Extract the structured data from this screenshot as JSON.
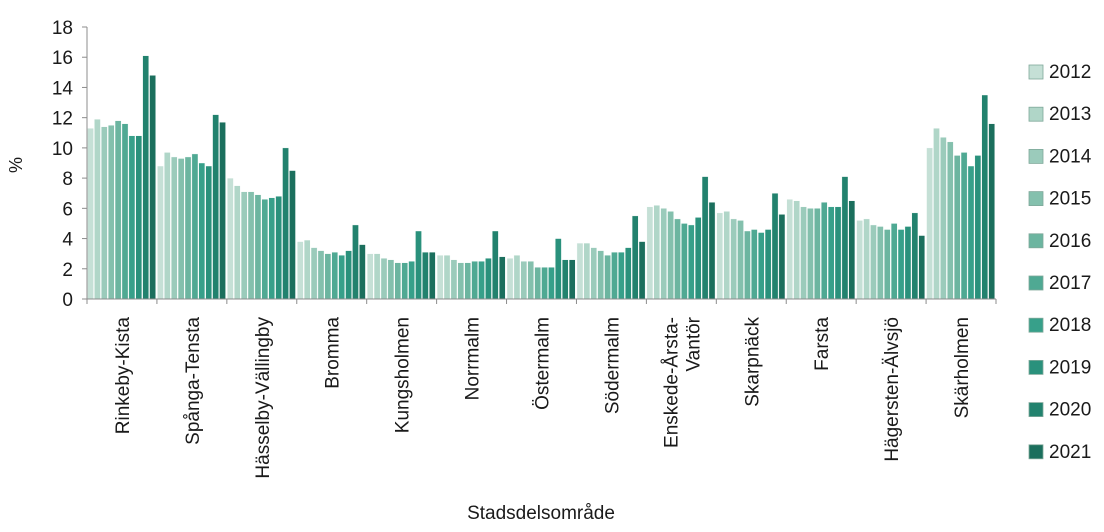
{
  "chart_data": {
    "type": "bar",
    "title": "",
    "xlabel": "Stadsdelsområde",
    "ylabel": "%",
    "ylim": [
      0,
      18
    ],
    "yticks": [
      0,
      2,
      4,
      6,
      8,
      10,
      12,
      14,
      16,
      18
    ],
    "grid": false,
    "legend_position": "right",
    "categories": [
      "Rinkeby-Kista",
      "Spånga-Tensta",
      "Hässelby-Vällingby",
      "Bromma",
      "Kungsholmen",
      "Norrmalm",
      "Östermalm",
      "Södermalm",
      "Enskede-Årsta-Vantör",
      "Skarpnäck",
      "Farsta",
      "Hägersten-Älvsjö",
      "Skärholmen"
    ],
    "category_label_lines": [
      [
        "Rinkeby-Kista"
      ],
      [
        "Spånga-Tensta"
      ],
      [
        "Hässelby-Vällingby"
      ],
      [
        "Bromma"
      ],
      [
        "Kungsholmen"
      ],
      [
        "Norrmalm"
      ],
      [
        "Östermalm"
      ],
      [
        "Södermalm"
      ],
      [
        "Enskede-Årsta-",
        "Vantör"
      ],
      [
        "Skarpnäck"
      ],
      [
        "Farsta"
      ],
      [
        "Hägersten-Älvsjö"
      ],
      [
        "Skärholmen"
      ]
    ],
    "series": [
      {
        "name": "2012",
        "color": "#c5e0d6",
        "values": [
          11.3,
          8.8,
          8.0,
          3.8,
          3.0,
          2.9,
          2.7,
          3.7,
          6.1,
          5.7,
          6.6,
          5.2,
          10.0
        ]
      },
      {
        "name": "2013",
        "color": "#b0d6c8",
        "values": [
          11.9,
          9.7,
          7.5,
          3.9,
          3.0,
          2.9,
          2.9,
          3.7,
          6.2,
          5.8,
          6.5,
          5.3,
          11.3
        ]
      },
      {
        "name": "2014",
        "color": "#9bcbbb",
        "values": [
          11.4,
          9.4,
          7.1,
          3.4,
          2.7,
          2.6,
          2.5,
          3.4,
          6.0,
          5.3,
          6.1,
          4.9,
          10.7
        ]
      },
      {
        "name": "2015",
        "color": "#84c0ad",
        "values": [
          11.5,
          9.3,
          7.1,
          3.2,
          2.6,
          2.4,
          2.5,
          3.2,
          5.8,
          5.2,
          6.0,
          4.8,
          10.4
        ]
      },
      {
        "name": "2016",
        "color": "#6cb5a0",
        "values": [
          11.8,
          9.4,
          6.9,
          3.0,
          2.4,
          2.4,
          2.1,
          2.9,
          5.3,
          4.5,
          6.0,
          4.6,
          9.5
        ]
      },
      {
        "name": "2017",
        "color": "#4fa993",
        "values": [
          11.6,
          9.6,
          6.6,
          3.1,
          2.4,
          2.5,
          2.1,
          3.1,
          5.0,
          4.6,
          6.4,
          5.0,
          9.7
        ]
      },
      {
        "name": "2018",
        "color": "#37a08a",
        "values": [
          10.8,
          9.0,
          6.7,
          2.9,
          2.5,
          2.5,
          2.1,
          3.1,
          4.9,
          4.4,
          6.1,
          4.6,
          8.8
        ]
      },
      {
        "name": "2019",
        "color": "#2a917c",
        "values": [
          10.8,
          8.8,
          6.8,
          3.2,
          4.5,
          2.7,
          4.0,
          3.4,
          5.4,
          4.6,
          6.1,
          4.8,
          9.5
        ]
      },
      {
        "name": "2020",
        "color": "#22826e",
        "values": [
          16.1,
          12.2,
          10.0,
          4.9,
          3.1,
          4.5,
          2.6,
          5.5,
          8.1,
          7.0,
          8.1,
          5.7,
          13.5
        ]
      },
      {
        "name": "2021",
        "color": "#1b6f5d",
        "values": [
          14.8,
          11.7,
          8.5,
          3.6,
          3.1,
          2.8,
          2.6,
          3.8,
          6.4,
          5.6,
          6.5,
          4.2,
          11.6
        ]
      }
    ]
  }
}
